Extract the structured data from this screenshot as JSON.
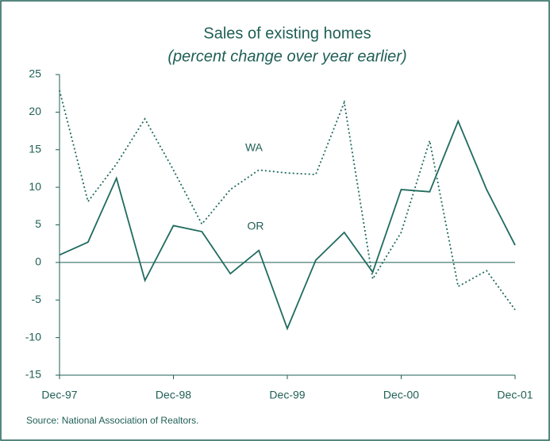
{
  "chart_data": {
    "type": "line",
    "title": "Sales of existing homes",
    "subtitle": "(percent change over year earlier)",
    "source": "Source: National Association of Realtors.",
    "categories": [
      "Dec-97",
      null,
      null,
      null,
      "Dec-98",
      null,
      null,
      null,
      "Dec-99",
      null,
      null,
      null,
      "Dec-00",
      null,
      null,
      null,
      "Dec-01"
    ],
    "series": [
      {
        "name": "OR",
        "color": "#1f6b5f",
        "dash": "solid",
        "values": [
          1.0,
          2.7,
          11.2,
          -2.4,
          4.9,
          4.1,
          -1.5,
          1.6,
          -8.8,
          0.3,
          4.0,
          -1.3,
          9.7,
          9.4,
          18.8,
          9.7,
          2.3
        ]
      },
      {
        "name": "WA",
        "color": "#1f6b5f",
        "dash": "dotted",
        "values": [
          22.9,
          8.1,
          13.1,
          19.1,
          12.3,
          5.1,
          9.7,
          12.3,
          11.9,
          11.7,
          21.3,
          -2.2,
          4.0,
          16.2,
          -3.2,
          -1.1,
          -6.3
        ]
      }
    ],
    "ylim": [
      -15,
      25
    ],
    "yticks": [
      -15,
      -10,
      -5,
      0,
      5,
      10,
      15,
      20,
      25
    ]
  }
}
